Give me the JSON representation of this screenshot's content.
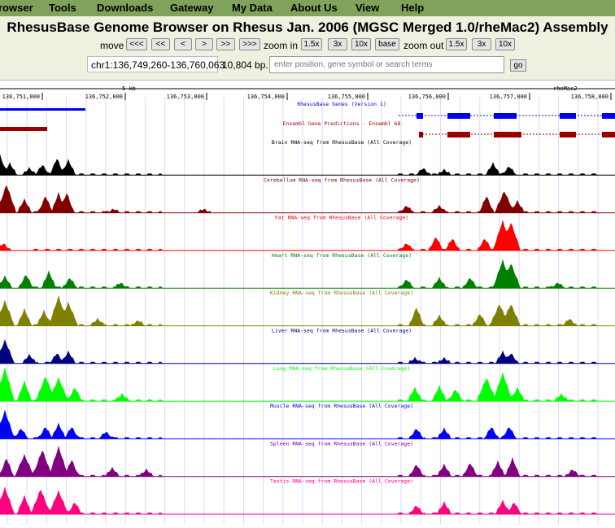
{
  "menu": [
    "rowser",
    "Tools",
    "Downloads",
    "Gateway",
    "My Data",
    "About Us",
    "View",
    "Help"
  ],
  "title": "RhesusBase Genome Browser on Rhesus Jan. 2006 (MGSC Merged 1.0/rheMac2) Assembly",
  "nav": {
    "move_label": "move",
    "move_buttons": [
      "<<<",
      "<<",
      "<",
      ">",
      ">>",
      ">>>"
    ],
    "zoom_in_label": "zoom in",
    "zoom_in_buttons": [
      "1.5x",
      "3x",
      "10x",
      "base"
    ],
    "zoom_out_label": "zoom out",
    "zoom_out_buttons": [
      "1.5x",
      "3x",
      "10x"
    ]
  },
  "position": "chr1:136,749,260-136,760,063",
  "size": "10,804 bp.",
  "search": {
    "placeholder": "enter position, gene symbol or search terms",
    "go": "go"
  },
  "ruler": {
    "scale": "5 kb",
    "assembly": "rheMac2",
    "ticks": [
      "136,751,000",
      "136,752,000",
      "136,753,000",
      "136,754,000",
      "136,755,000",
      "136,756,000",
      "136,757,000",
      "136,758,000"
    ]
  },
  "colors": {
    "menubar": "#7fa35a",
    "gene": "#0000ee",
    "ensembl": "#990000"
  },
  "tracks": [
    {
      "label": "RhesusBase Genes (Version 1)",
      "kind": "gene",
      "color": "#0000ee"
    },
    {
      "label": "Ensembl Gene Predictions - Ensembl 68",
      "kind": "gene",
      "color": "#990000"
    },
    {
      "label": "Brain RNA-seq from RhesusBase (All Coverage)",
      "kind": "signal",
      "color": "#000000"
    },
    {
      "label": "Cerebellum RNA-seq from RhesusBase (All Coverage)",
      "kind": "signal",
      "color": "#800000"
    },
    {
      "label": "Fat RNA-seq from RhesusBase (All Coverage)",
      "kind": "signal",
      "color": "#ff0000"
    },
    {
      "label": "Heart RNA-seq from RhesusBase (All Coverage)",
      "kind": "signal",
      "color": "#008000"
    },
    {
      "label": "Kidney RNA-seq from RhesusBase (All Coverage)",
      "kind": "signal",
      "color": "#808000"
    },
    {
      "label": "Liver RNA-seq from RhesusBase (All Coverage)",
      "kind": "signal",
      "color": "#000080"
    },
    {
      "label": "Lung RNA-seq from RhesusBase (All Coverage)",
      "kind": "signal",
      "color": "#00ff00"
    },
    {
      "label": "Muscle RNA-seq from RhesusBase (All Coverage)",
      "kind": "signal",
      "color": "#0000ff"
    },
    {
      "label": "Spleen RNA-seq from RhesusBase (All Coverage)",
      "kind": "signal",
      "color": "#800080"
    },
    {
      "label": "Testis RNA-seq from RhesusBase (All Coverage)",
      "kind": "signal",
      "color": "#ff0080"
    }
  ]
}
